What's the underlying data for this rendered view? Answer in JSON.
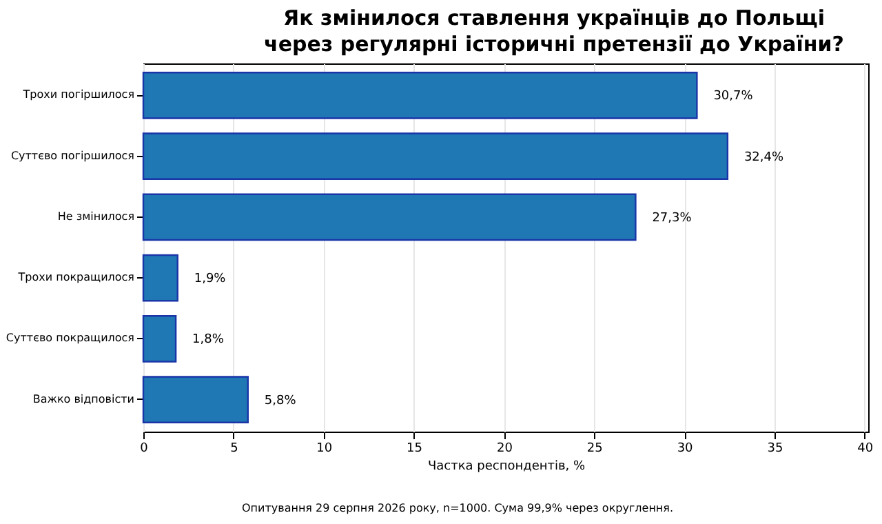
{
  "chart_data": {
    "type": "bar",
    "orientation": "horizontal",
    "title": "Як змінилося ставлення українців до Польщі\nчерез регулярні історичні претензії до України?",
    "xlabel": "Частка респондентів, %",
    "categories": [
      "Трохи погіршилося",
      "Суттєво погіршилося",
      "Не змінилося",
      "Трохи покращилося",
      "Суттєво покращилося",
      "Важко відповісти"
    ],
    "values": [
      30.7,
      32.4,
      27.3,
      1.9,
      1.8,
      5.8
    ],
    "value_labels": [
      "30,7%",
      "32,4%",
      "27,3%",
      "1,9%",
      "1,8%",
      "5,8%"
    ],
    "color": "#1f77b4",
    "xlim": [
      0,
      40.2
    ],
    "xticks": [
      0,
      5,
      10,
      15,
      20,
      25,
      30,
      35,
      40
    ],
    "grid": "x",
    "annotations": [
      "Опитування 29 серпня 2026 року, n=1000. Сума 99,9% через округлення."
    ]
  }
}
